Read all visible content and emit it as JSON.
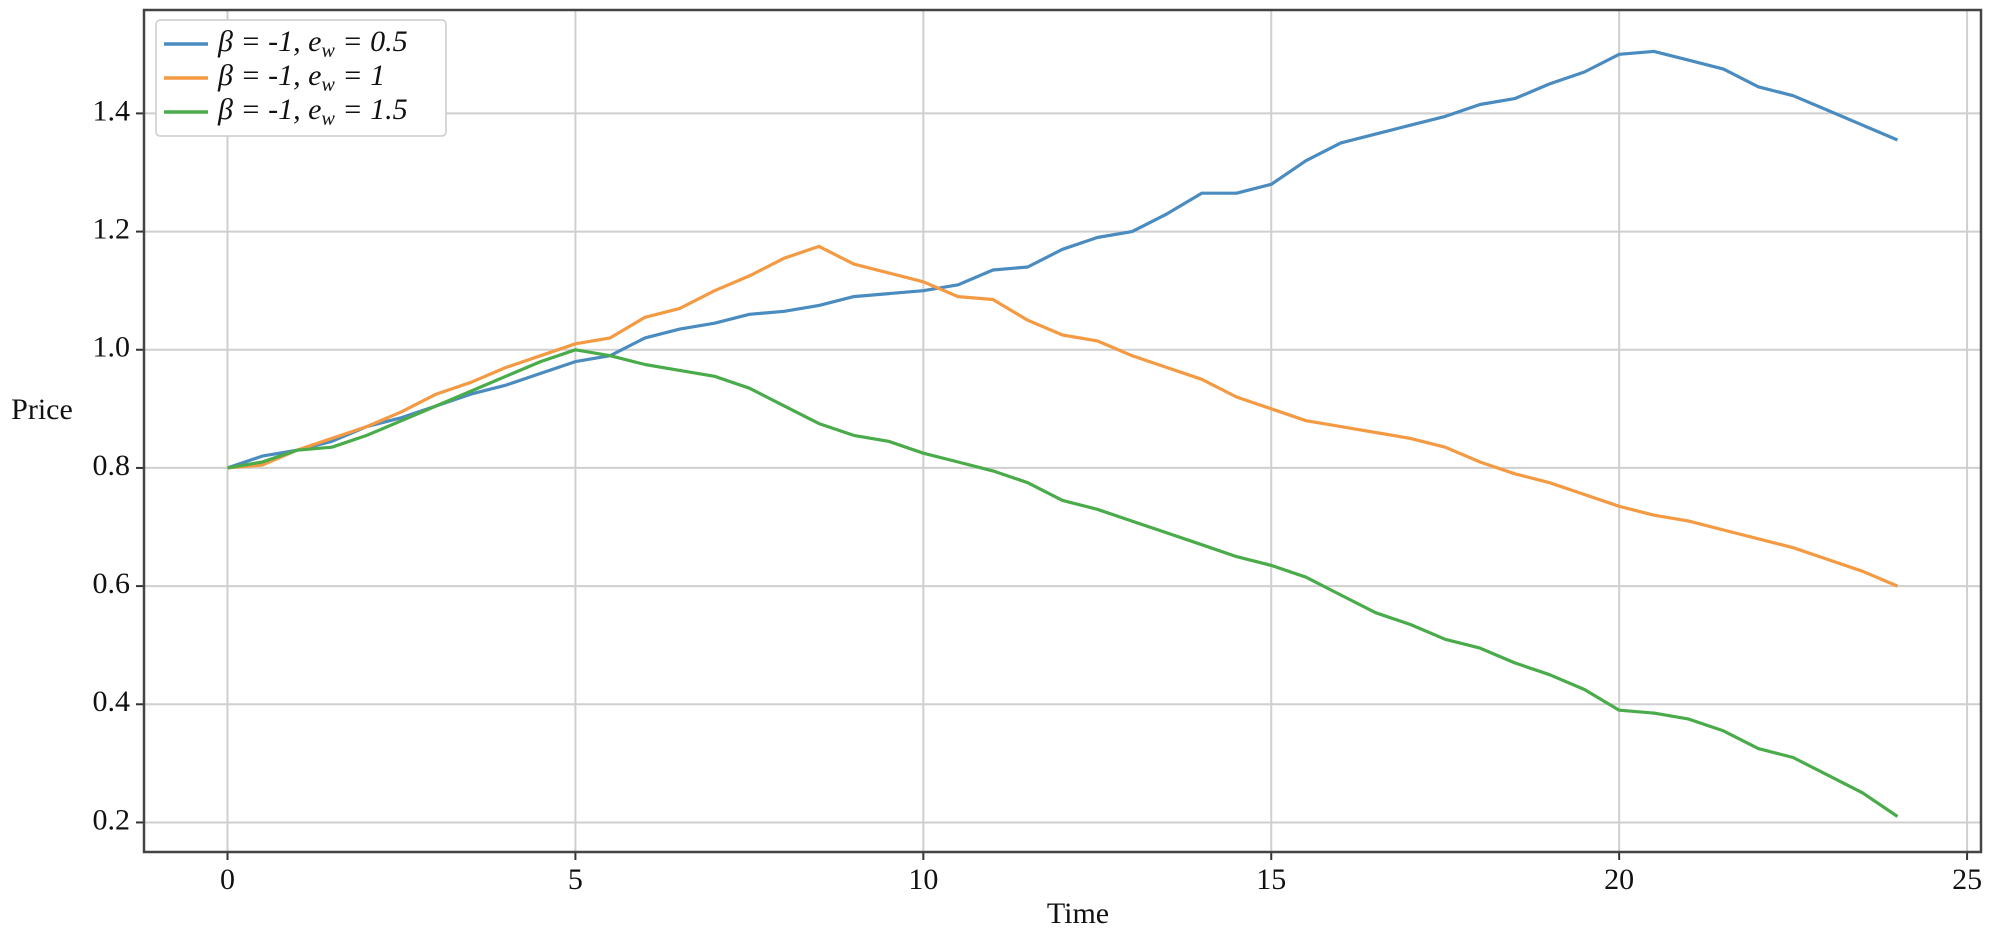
{
  "chart_data": {
    "type": "line",
    "x_label": "Time",
    "y_label": "Price",
    "x": [
      0,
      0.5,
      1,
      1.5,
      2,
      2.5,
      3,
      3.5,
      4,
      4.5,
      5,
      5.5,
      6,
      6.5,
      7,
      7.5,
      8,
      8.5,
      9,
      9.5,
      10,
      10.5,
      11,
      11.5,
      12,
      12.5,
      13,
      13.5,
      14,
      14.5,
      15,
      15.5,
      16,
      16.5,
      17,
      17.5,
      18,
      18.5,
      19,
      19.5,
      20,
      20.5,
      21,
      21.5,
      22,
      22.5,
      23,
      23.5,
      24
    ],
    "series": [
      {
        "name": "β = -1, e_w = 0.5",
        "color": "#4a8bc0",
        "values": [
          0.8,
          0.82,
          0.83,
          0.845,
          0.87,
          0.885,
          0.905,
          0.925,
          0.94,
          0.96,
          0.98,
          0.99,
          1.02,
          1.035,
          1.045,
          1.06,
          1.065,
          1.075,
          1.09,
          1.095,
          1.1,
          1.11,
          1.135,
          1.14,
          1.17,
          1.19,
          1.2,
          1.23,
          1.265,
          1.265,
          1.28,
          1.32,
          1.35,
          1.365,
          1.38,
          1.395,
          1.415,
          1.425,
          1.45,
          1.47,
          1.5,
          1.505,
          1.49,
          1.475,
          1.445,
          1.43,
          1.405,
          1.38,
          1.355
        ]
      },
      {
        "name": "β = -1, e_w = 1",
        "color": "#f39a43",
        "values": [
          0.8,
          0.805,
          0.83,
          0.85,
          0.87,
          0.895,
          0.925,
          0.945,
          0.97,
          0.99,
          1.01,
          1.02,
          1.055,
          1.07,
          1.1,
          1.125,
          1.155,
          1.175,
          1.145,
          1.13,
          1.115,
          1.09,
          1.085,
          1.05,
          1.025,
          1.015,
          0.99,
          0.97,
          0.95,
          0.92,
          0.9,
          0.88,
          0.87,
          0.86,
          0.85,
          0.835,
          0.81,
          0.79,
          0.775,
          0.755,
          0.735,
          0.72,
          0.71,
          0.695,
          0.68,
          0.665,
          0.645,
          0.625,
          0.6
        ]
      },
      {
        "name": "β = -1, e_w = 1.5",
        "color": "#4aab4a",
        "values": [
          0.8,
          0.81,
          0.83,
          0.835,
          0.855,
          0.88,
          0.905,
          0.93,
          0.955,
          0.98,
          1.0,
          0.99,
          0.975,
          0.965,
          0.955,
          0.935,
          0.905,
          0.875,
          0.855,
          0.845,
          0.825,
          0.81,
          0.795,
          0.775,
          0.745,
          0.73,
          0.71,
          0.69,
          0.67,
          0.65,
          0.635,
          0.615,
          0.585,
          0.555,
          0.535,
          0.51,
          0.495,
          0.47,
          0.45,
          0.425,
          0.39,
          0.385,
          0.375,
          0.355,
          0.325,
          0.31,
          0.28,
          0.25,
          0.21
        ]
      }
    ],
    "xlim": [
      -1.2,
      25.2
    ],
    "ylim": [
      0.15,
      1.575
    ],
    "xticks": [
      0,
      5,
      10,
      15,
      20,
      25
    ],
    "yticks": [
      0.2,
      0.4,
      0.6,
      0.8,
      {
        "value": 1,
        "label": "1.0"
      },
      1.2,
      1.4
    ],
    "grid": true,
    "legend": "upper left"
  }
}
